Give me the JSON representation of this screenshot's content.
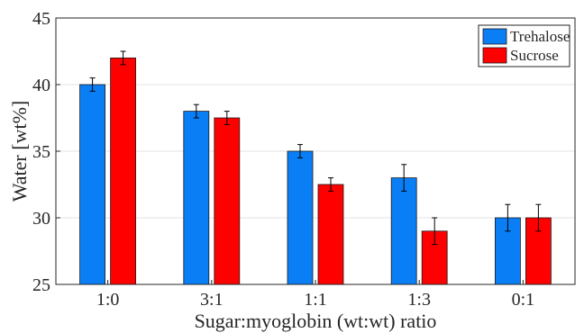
{
  "chart_data": {
    "type": "bar",
    "xlabel": "Sugar:myoglobin (wt:wt) ratio",
    "ylabel": "Water [wt%]",
    "categories": [
      "1:0",
      "3:1",
      "1:1",
      "1:3",
      "0:1"
    ],
    "ylim": [
      25,
      45
    ],
    "yticks": [
      25,
      30,
      35,
      40,
      45
    ],
    "grid": "horizontal",
    "legend_position": "top-right",
    "series": [
      {
        "name": "Trehalose",
        "color": "#0a7ef5",
        "values": [
          40,
          38,
          35,
          33,
          30
        ],
        "errors": [
          0.5,
          0.5,
          0.5,
          1.0,
          1.0
        ]
      },
      {
        "name": "Sucrose",
        "color": "#ff0000",
        "values": [
          42,
          37.5,
          32.5,
          29,
          30
        ],
        "errors": [
          0.5,
          0.5,
          0.5,
          1.0,
          1.0
        ]
      }
    ]
  }
}
